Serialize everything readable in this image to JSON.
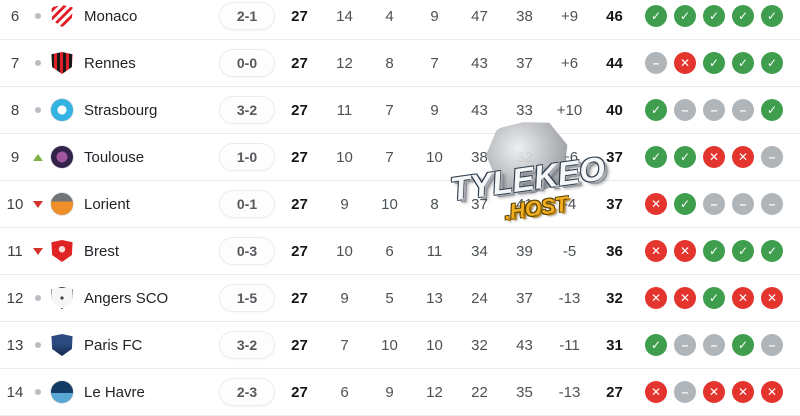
{
  "colors": {
    "win": "#3f9e4d",
    "loss": "#e3342e",
    "draw": "#b0b5ba",
    "up": "#7cb342",
    "down": "#d6332e",
    "same": "#b9bdc1"
  },
  "form_glyphs": {
    "W": "✓",
    "L": "✕",
    "D": "–"
  },
  "watermark": {
    "line1": "TYLEKEO",
    "line2": ".HOST"
  },
  "standings": {
    "rows": [
      {
        "pos": "6",
        "change": "same",
        "logo": "monaco",
        "shape": "shield",
        "team": "Monaco",
        "score": "2-1",
        "mp": "27",
        "w": "14",
        "d": "4",
        "l": "9",
        "gf": "47",
        "ga": "38",
        "gd": "+9",
        "pts": "46",
        "form": [
          "W",
          "W",
          "W",
          "W",
          "W"
        ]
      },
      {
        "pos": "7",
        "change": "same",
        "logo": "rennes",
        "shape": "shield",
        "team": "Rennes",
        "score": "0-0",
        "mp": "27",
        "w": "12",
        "d": "8",
        "l": "7",
        "gf": "43",
        "ga": "37",
        "gd": "+6",
        "pts": "44",
        "form": [
          "D",
          "L",
          "W",
          "W",
          "W"
        ]
      },
      {
        "pos": "8",
        "change": "same",
        "logo": "strasbourg",
        "shape": "round",
        "team": "Strasbourg",
        "score": "3-2",
        "mp": "27",
        "w": "11",
        "d": "7",
        "l": "9",
        "gf": "43",
        "ga": "33",
        "gd": "+10",
        "pts": "40",
        "form": [
          "W",
          "D",
          "D",
          "D",
          "W"
        ]
      },
      {
        "pos": "9",
        "change": "up",
        "logo": "toulouse",
        "shape": "round",
        "team": "Toulouse",
        "score": "1-0",
        "mp": "27",
        "w": "10",
        "d": "7",
        "l": "10",
        "gf": "38",
        "ga": "32",
        "gd": "+6",
        "pts": "37",
        "form": [
          "W",
          "W",
          "L",
          "L",
          "D"
        ]
      },
      {
        "pos": "10",
        "change": "down",
        "logo": "lorient",
        "shape": "round",
        "team": "Lorient",
        "score": "0-1",
        "mp": "27",
        "w": "9",
        "d": "10",
        "l": "8",
        "gf": "37",
        "ga": "41",
        "gd": "-4",
        "pts": "37",
        "form": [
          "L",
          "W",
          "D",
          "D",
          "D"
        ]
      },
      {
        "pos": "11",
        "change": "down",
        "logo": "brest",
        "shape": "shield",
        "team": "Brest",
        "score": "0-3",
        "mp": "27",
        "w": "10",
        "d": "6",
        "l": "11",
        "gf": "34",
        "ga": "39",
        "gd": "-5",
        "pts": "36",
        "form": [
          "L",
          "L",
          "W",
          "W",
          "W"
        ]
      },
      {
        "pos": "12",
        "change": "same",
        "logo": "angers",
        "shape": "shield",
        "team": "Angers SCO",
        "score": "1-5",
        "mp": "27",
        "w": "9",
        "d": "5",
        "l": "13",
        "gf": "24",
        "ga": "37",
        "gd": "-13",
        "pts": "32",
        "form": [
          "L",
          "L",
          "W",
          "L",
          "L"
        ]
      },
      {
        "pos": "13",
        "change": "same",
        "logo": "parisfc",
        "shape": "shield",
        "team": "Paris FC",
        "score": "3-2",
        "mp": "27",
        "w": "7",
        "d": "10",
        "l": "10",
        "gf": "32",
        "ga": "43",
        "gd": "-11",
        "pts": "31",
        "form": [
          "W",
          "D",
          "D",
          "W",
          "D"
        ]
      },
      {
        "pos": "14",
        "change": "same",
        "logo": "lehavre",
        "shape": "round",
        "team": "Le Havre",
        "score": "2-3",
        "mp": "27",
        "w": "6",
        "d": "9",
        "l": "12",
        "gf": "22",
        "ga": "35",
        "gd": "-13",
        "pts": "27",
        "form": [
          "L",
          "D",
          "L",
          "L",
          "L"
        ]
      }
    ]
  }
}
